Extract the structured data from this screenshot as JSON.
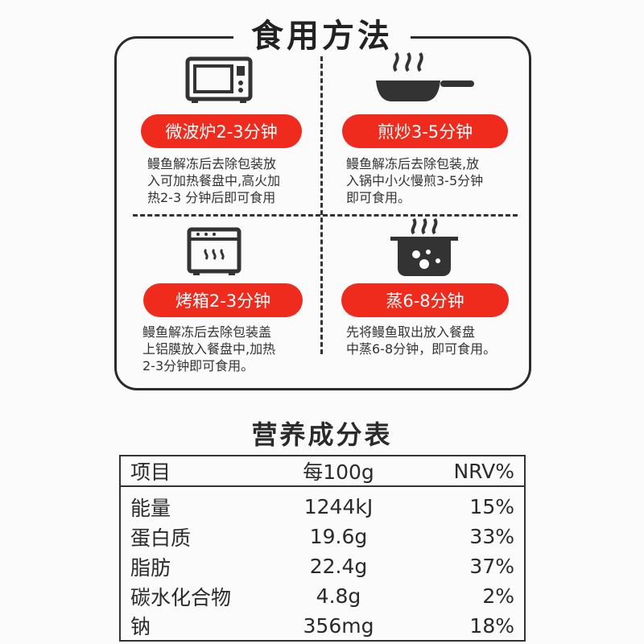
{
  "usage": {
    "title": "食用方法",
    "methods": [
      {
        "icon": "microwave-icon",
        "label": "微波炉2-3分钟",
        "lines": [
          "鳗鱼解冻后去除包装放",
          "入可加热餐盘中,高火加",
          "热2-3 分钟后即可食用"
        ]
      },
      {
        "icon": "frying-pan-icon",
        "label": "煎炒3-5分钟",
        "lines": [
          "鳗鱼解冻后去除包装,放",
          "入锅中小火慢煎3-5分钟",
          "即可食用。"
        ]
      },
      {
        "icon": "oven-icon",
        "label": "烤箱2-3分钟",
        "lines": [
          "鳗鱼解冻后去除包装盖",
          "上铝膜放入餐盘中,加热",
          "2-3分钟即可食用。"
        ]
      },
      {
        "icon": "steamer-pot-icon",
        "label": "蒸6-8分钟",
        "lines": [
          "先将鳗鱼取出放入餐盘",
          "中蒸6-8分钟，即可食用。"
        ]
      }
    ],
    "accent": "#ef2b1e"
  },
  "nutrition": {
    "title": "营养成分表",
    "headers": [
      "项目",
      "每100g",
      "NRV%"
    ],
    "rows": [
      [
        "能量",
        "1244kJ",
        "15%"
      ],
      [
        "蛋白质",
        "19.6g",
        "33%"
      ],
      [
        "脂肪",
        "22.4g",
        "37%"
      ],
      [
        "碳水化合物",
        "4.8g",
        "2%"
      ],
      [
        "钠",
        "356mg",
        "18%"
      ]
    ]
  }
}
